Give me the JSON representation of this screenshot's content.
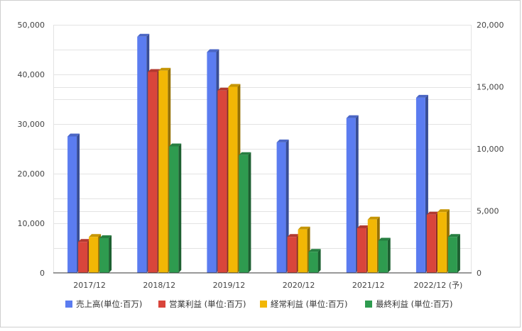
{
  "chart_data": {
    "type": "bar",
    "title": "",
    "categories": [
      "2017/12",
      "2018/12",
      "2019/12",
      "2020/12",
      "2021/12",
      "2022/12 (予)"
    ],
    "series": [
      {
        "name": "売上高(単位:百万)",
        "axis": "left",
        "color": "#5b7cf0",
        "values": [
          27500,
          47600,
          44500,
          26300,
          31200,
          35300
        ]
      },
      {
        "name": "営業利益 (単位:百万)",
        "axis": "right",
        "color": "#d9453b",
        "values": [
          2500,
          16200,
          14700,
          2900,
          3600,
          4700
        ]
      },
      {
        "name": "経常利益 (単位:百万)",
        "axis": "right",
        "color": "#f2b705",
        "values": [
          2900,
          16300,
          15000,
          3500,
          4300,
          4900
        ]
      },
      {
        "name": "最終利益 (単位:百万)",
        "axis": "right",
        "color": "#2e9b4f",
        "values": [
          2800,
          10200,
          9500,
          1700,
          2600,
          2900
        ]
      }
    ],
    "y_left": {
      "ylim": [
        0,
        50000
      ],
      "ticks": [
        "0",
        "10,000",
        "20,000",
        "30,000",
        "40,000",
        "50,000"
      ]
    },
    "y_right": {
      "ylim": [
        0,
        20000
      ],
      "ticks": [
        "0",
        "5,000",
        "10,000",
        "15,000",
        "20,000"
      ]
    },
    "grid": true,
    "legend_position": "bottom",
    "style": "3d-bar"
  }
}
